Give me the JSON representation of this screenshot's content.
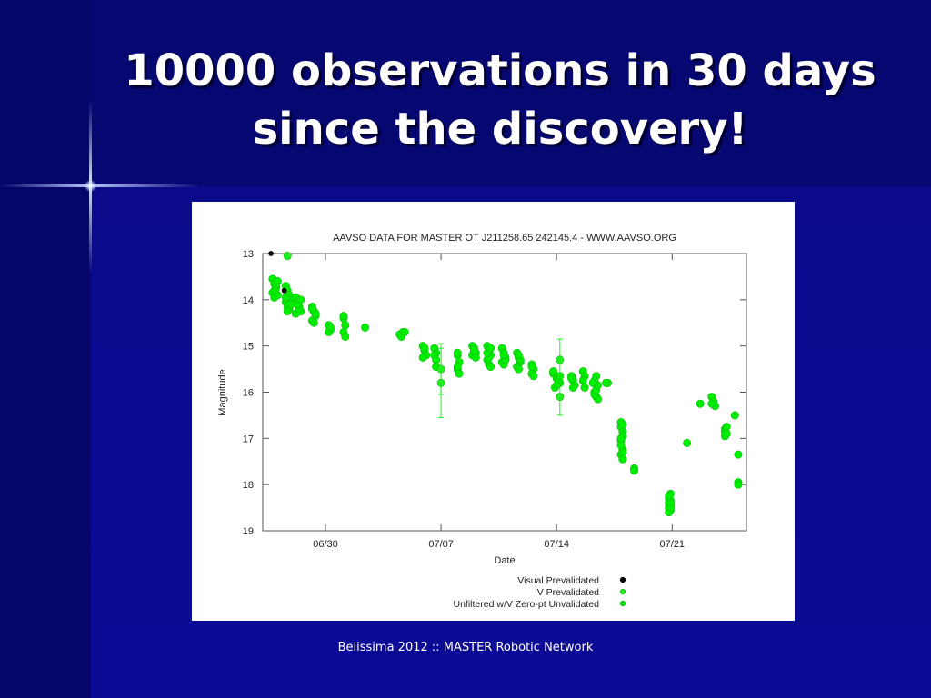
{
  "slide": {
    "title": "10000 observations in 30 days since the discovery!",
    "footer": "Belissima 2012 :: MASTER Robotic Network"
  },
  "colors": {
    "background": "#0a0a8c",
    "visual": "#000000",
    "v_band": "#22ee22",
    "unfiltered": "#00ee00"
  },
  "chart_data": {
    "type": "scatter",
    "title": "AAVSO DATA FOR MASTER OT J211258.65 242145.4 - WWW.AAVSO.ORG",
    "xlabel": "Date",
    "ylabel": "Magnitude",
    "x_unit": "days (0 = 06/30)",
    "xlim": [
      -3.8,
      25.5
    ],
    "ylim": [
      19,
      13
    ],
    "y_inverted": true,
    "x_ticks": [
      {
        "value": 0,
        "label": "06/30"
      },
      {
        "value": 7,
        "label": "07/07"
      },
      {
        "value": 14,
        "label": "07/14"
      },
      {
        "value": 21,
        "label": "07/21"
      }
    ],
    "y_ticks": [
      "13",
      "14",
      "15",
      "16",
      "17",
      "18",
      "19"
    ],
    "legend_position": "bottom-right",
    "grid": false,
    "series": [
      {
        "name": "Visual Prevalidated",
        "color": "#000000",
        "x": [
          -3.3,
          -2.5
        ],
        "y": [
          13.0,
          13.8
        ]
      },
      {
        "name": "V Prevalidated",
        "color": "#22ee22",
        "x": [
          -2.3,
          7.0,
          7.0,
          14.2,
          14.2
        ],
        "y": [
          13.05,
          15.5,
          15.8,
          15.3,
          16.1
        ]
      },
      {
        "name": "Unfiltered w/V Zero-pt Unvalidated",
        "color": "#00ee00",
        "x": [
          -3.2,
          -3.1,
          -3.0,
          -2.9,
          -3.2,
          -3.1,
          -2.9,
          -3.0,
          -3.1,
          -2.4,
          -2.3,
          -2.2,
          -2.1,
          -2.4,
          -2.3,
          -2.2,
          -2.4,
          -2.1,
          -2.3,
          -1.8,
          -1.7,
          -1.6,
          -1.5,
          -1.8,
          -1.6,
          -1.7,
          -1.5,
          -0.8,
          -0.7,
          -0.6,
          -0.8,
          -0.7,
          -0.6,
          -0.8,
          0.2,
          0.3,
          0.2,
          0.3,
          1.1,
          1.2,
          1.1,
          1.2,
          1.1,
          2.4,
          4.5,
          4.7,
          4.6,
          4.8,
          5.9,
          6.0,
          6.1,
          5.9,
          6.0,
          6.6,
          6.7,
          6.6,
          6.7,
          6.7,
          8.0,
          8.1,
          8.0,
          8.1,
          8.0,
          8.0,
          8.9,
          9.0,
          9.1,
          8.9,
          9.0,
          9.1,
          9.0,
          9.8,
          9.9,
          10.0,
          9.8,
          9.9,
          10.0,
          9.9,
          9.8,
          10.0,
          10.7,
          10.8,
          10.9,
          10.7,
          10.8,
          10.9,
          10.8,
          11.6,
          11.7,
          11.8,
          11.6,
          11.7,
          11.8,
          11.7,
          12.5,
          12.6,
          12.5,
          12.6,
          12.5,
          13.8,
          14.0,
          14.2,
          13.9,
          14.1,
          14.0,
          13.8,
          14.2,
          14.9,
          15.0,
          15.1,
          15.0,
          14.9,
          15.6,
          15.7,
          15.6,
          15.7,
          16.3,
          16.4,
          16.5,
          16.3,
          16.4,
          16.5,
          16.4,
          16.3,
          16.2,
          17.0,
          17.1,
          17.0,
          17.9,
          18.0,
          17.9,
          18.0,
          17.9,
          18.0,
          17.9,
          18.0,
          17.9,
          18.0,
          17.9,
          18.0,
          18.7,
          18.7,
          20.9,
          20.8,
          20.9,
          20.8,
          20.9,
          20.8,
          20.9,
          20.8,
          20.9,
          20.8,
          20.9,
          21.9,
          22.7,
          23.4,
          23.5,
          23.6,
          23.4,
          24.2,
          24.3,
          24.2,
          24.3,
          24.2,
          24.3,
          24.8,
          25.0,
          25.0,
          25.0
        ],
        "y": [
          13.55,
          13.65,
          13.75,
          13.6,
          13.85,
          13.95,
          13.9,
          13.7,
          13.8,
          13.7,
          13.8,
          13.9,
          14.0,
          14.05,
          14.15,
          14.2,
          13.95,
          14.1,
          14.25,
          13.95,
          14.05,
          14.15,
          14.25,
          14.3,
          14.2,
          14.1,
          14.0,
          14.15,
          14.25,
          14.35,
          14.45,
          14.5,
          14.3,
          14.2,
          14.55,
          14.65,
          14.7,
          14.6,
          14.4,
          14.55,
          14.7,
          14.8,
          14.35,
          14.6,
          14.75,
          14.7,
          14.8,
          14.7,
          15.0,
          15.1,
          15.2,
          15.25,
          15.05,
          15.05,
          15.15,
          15.2,
          15.3,
          15.45,
          15.2,
          15.35,
          15.5,
          15.6,
          15.45,
          15.15,
          15.0,
          15.1,
          15.15,
          15.2,
          15.05,
          15.25,
          15.1,
          15.0,
          15.1,
          15.2,
          15.3,
          15.4,
          15.45,
          15.25,
          15.15,
          15.05,
          15.05,
          15.15,
          15.25,
          15.35,
          15.4,
          15.3,
          15.2,
          15.15,
          15.25,
          15.35,
          15.45,
          15.5,
          15.3,
          15.2,
          15.4,
          15.5,
          15.6,
          15.65,
          15.45,
          15.6,
          15.7,
          15.8,
          15.9,
          15.75,
          15.85,
          15.55,
          15.65,
          15.65,
          15.75,
          15.85,
          15.9,
          15.7,
          15.55,
          15.65,
          15.75,
          15.9,
          16.0,
          16.1,
          16.15,
          16.05,
          15.95,
          15.85,
          15.65,
          15.75,
          15.8,
          15.8,
          15.8,
          15.8,
          16.65,
          16.85,
          17.05,
          17.25,
          17.35,
          17.45,
          16.75,
          16.95,
          17.15,
          17.3,
          17.0,
          16.7,
          17.65,
          17.7,
          18.2,
          18.3,
          18.35,
          18.4,
          18.45,
          18.5,
          18.55,
          18.6,
          18.4,
          18.25,
          18.5,
          17.1,
          16.25,
          16.1,
          16.2,
          16.3,
          16.25,
          16.8,
          16.9,
          16.85,
          16.75,
          16.95,
          16.9,
          16.5,
          17.35,
          17.95,
          18.0
        ]
      }
    ]
  }
}
